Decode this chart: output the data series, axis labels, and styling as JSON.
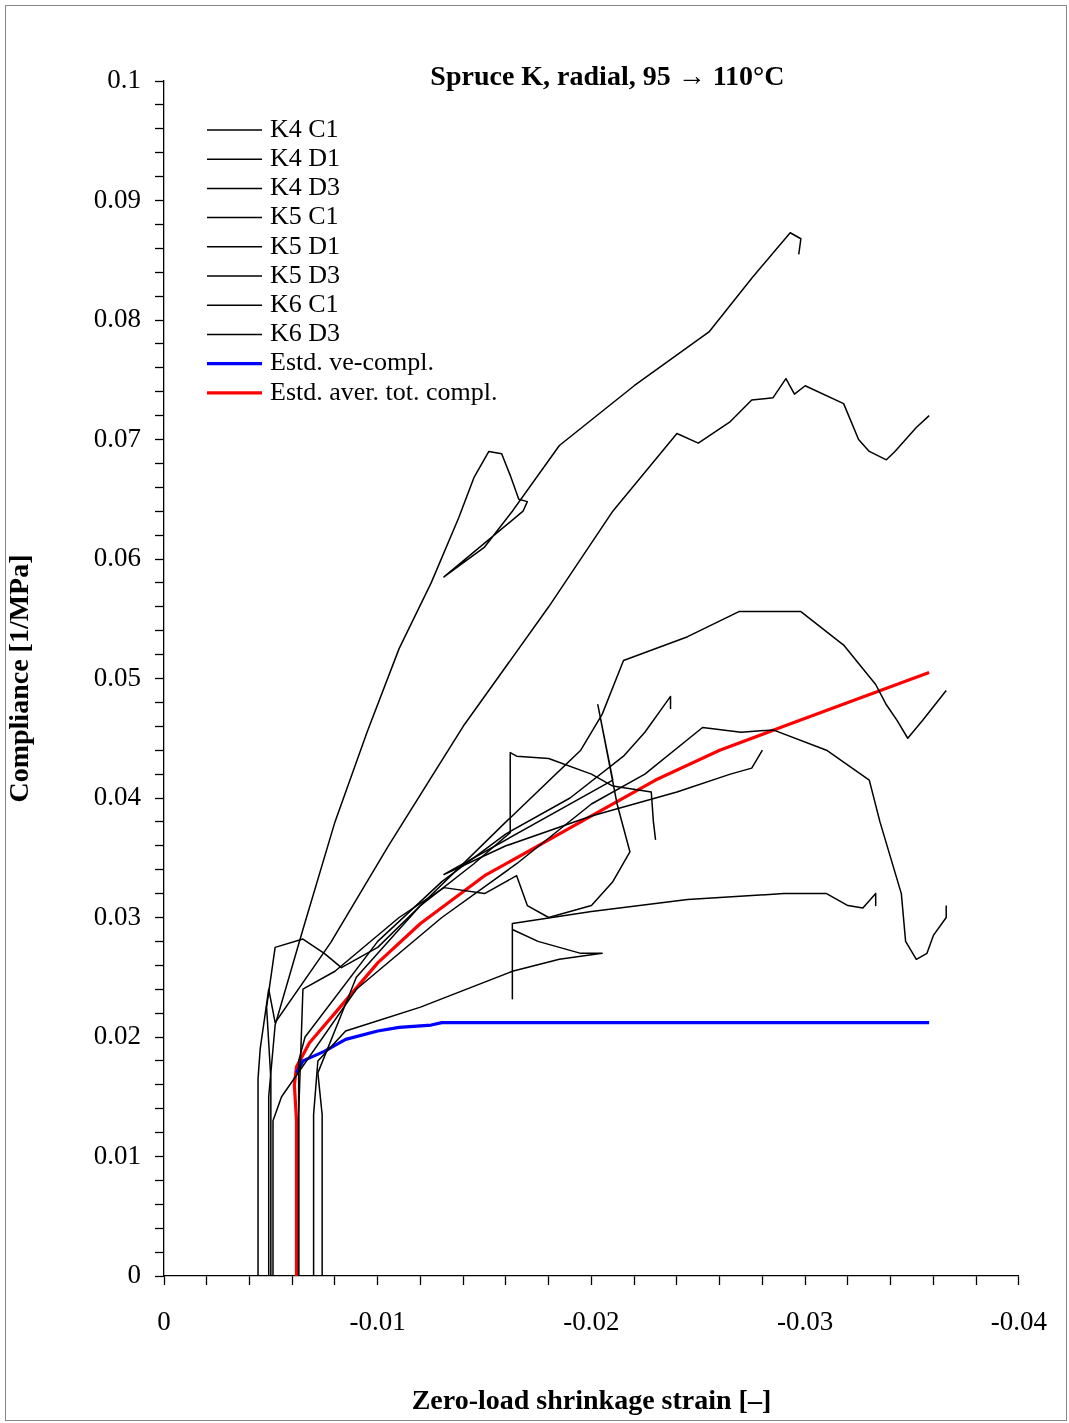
{
  "chart_data": {
    "type": "line",
    "title": "Spruce K, radial, 95 → 110°C",
    "xlabel": "Zero-load shrinkage strain [–]",
    "ylabel": "Compliance [1/MPa]",
    "legend": "top left",
    "marker": "none",
    "xlim": [
      0,
      -0.04
    ],
    "ylim": [
      0,
      0.1
    ],
    "xticks": [
      0,
      {
        "value": -0.002,
        "label": null
      },
      {
        "value": -0.004,
        "label": null
      },
      {
        "value": -0.006,
        "label": null
      },
      {
        "value": -0.008,
        "label": null
      },
      -0.01,
      {
        "value": -0.012,
        "label": null
      },
      {
        "value": -0.014,
        "label": null
      },
      {
        "value": -0.016,
        "label": null
      },
      {
        "value": -0.018,
        "label": null
      },
      -0.02,
      {
        "value": -0.022,
        "label": null
      },
      {
        "value": -0.024,
        "label": null
      },
      {
        "value": -0.026,
        "label": null
      },
      {
        "value": -0.028,
        "label": null
      },
      -0.03,
      {
        "value": -0.032,
        "label": null
      },
      {
        "value": -0.034,
        "label": null
      },
      {
        "value": -0.036,
        "label": null
      },
      {
        "value": -0.038,
        "label": null
      },
      -0.04
    ],
    "yticks": [
      0,
      {
        "value": 0.002,
        "label": null
      },
      {
        "value": 0.004,
        "label": null
      },
      {
        "value": 0.006,
        "label": null
      },
      {
        "value": 0.008,
        "label": null
      },
      0.01,
      {
        "value": 0.012,
        "label": null
      },
      {
        "value": 0.014,
        "label": null
      },
      {
        "value": 0.016,
        "label": null
      },
      {
        "value": 0.018,
        "label": null
      },
      0.02,
      {
        "value": 0.022,
        "label": null
      },
      {
        "value": 0.024,
        "label": null
      },
      {
        "value": 0.026,
        "label": null
      },
      {
        "value": 0.028,
        "label": null
      },
      0.03,
      {
        "value": 0.032,
        "label": null
      },
      {
        "value": 0.034,
        "label": null
      },
      {
        "value": 0.036,
        "label": null
      },
      {
        "value": 0.038,
        "label": null
      },
      0.04,
      {
        "value": 0.042,
        "label": null
      },
      {
        "value": 0.044,
        "label": null
      },
      {
        "value": 0.046,
        "label": null
      },
      {
        "value": 0.048,
        "label": null
      },
      0.05,
      {
        "value": 0.052,
        "label": null
      },
      {
        "value": 0.054,
        "label": null
      },
      {
        "value": 0.056,
        "label": null
      },
      {
        "value": 0.058,
        "label": null
      },
      0.06,
      {
        "value": 0.062,
        "label": null
      },
      {
        "value": 0.064,
        "label": null
      },
      {
        "value": 0.066,
        "label": null
      },
      {
        "value": 0.068,
        "label": null
      },
      0.07,
      {
        "value": 0.072,
        "label": null
      },
      {
        "value": 0.074,
        "label": null
      },
      {
        "value": 0.076,
        "label": null
      },
      {
        "value": 0.078,
        "label": null
      },
      0.08,
      {
        "value": 0.082,
        "label": null
      },
      {
        "value": 0.084,
        "label": null
      },
      {
        "value": 0.086,
        "label": null
      },
      {
        "value": 0.088,
        "label": null
      },
      0.09,
      {
        "value": 0.092,
        "label": null
      },
      {
        "value": 0.094,
        "label": null
      },
      {
        "value": 0.096,
        "label": null
      },
      {
        "value": 0.098,
        "label": null
      },
      0.1
    ],
    "series": [
      {
        "name": "K4 C1",
        "color": "#000000",
        "x": [
          -0.0049,
          -0.0049,
          -0.0052,
          -0.0065,
          -0.008,
          -0.0095,
          -0.011,
          -0.0125,
          -0.0138,
          -0.0145,
          -0.0152,
          -0.0158,
          -0.0162,
          -0.0166,
          -0.017,
          -0.0168,
          -0.0131,
          -0.015,
          -0.0163,
          -0.0185,
          -0.022,
          -0.0255,
          -0.0275,
          -0.0293,
          -0.0298,
          -0.0297
        ],
        "values": [
          0,
          0.015,
          0.021,
          0.029,
          0.038,
          0.0455,
          0.0525,
          0.058,
          0.0635,
          0.0668,
          0.069,
          0.0688,
          0.067,
          0.065,
          0.0648,
          0.064,
          0.0585,
          0.061,
          0.064,
          0.0695,
          0.0745,
          0.079,
          0.0835,
          0.0873,
          0.0868,
          0.0855
        ]
      },
      {
        "name": "K4 D1",
        "color": "#000000",
        "x": [
          -0.0044,
          -0.0044,
          -0.0045,
          -0.0049,
          -0.0052,
          -0.0078,
          -0.0105,
          -0.014,
          -0.018,
          -0.021,
          -0.024,
          -0.025,
          -0.0265,
          -0.0275,
          -0.0285,
          -0.0291,
          -0.0295,
          -0.03,
          -0.0318,
          -0.0325,
          -0.033,
          -0.0338,
          -0.0342,
          -0.0352,
          -0.0358
        ],
        "values": [
          0,
          0.0165,
          0.019,
          0.024,
          0.0212,
          0.0279,
          0.036,
          0.046,
          0.056,
          0.064,
          0.0705,
          0.0697,
          0.0715,
          0.0733,
          0.0735,
          0.0751,
          0.0738,
          0.0745,
          0.073,
          0.07,
          0.069,
          0.0683,
          0.069,
          0.071,
          0.072
        ]
      },
      {
        "name": "K4 D3",
        "color": "#000000",
        "x": [
          -0.005,
          -0.005,
          -0.0048,
          -0.0052,
          -0.0065,
          -0.0075,
          -0.0083,
          -0.01,
          -0.012,
          -0.016,
          -0.0195,
          -0.0205,
          -0.0215,
          -0.0245,
          -0.0269,
          -0.0298,
          -0.0318,
          -0.0333,
          -0.0338,
          -0.0343,
          -0.0348,
          -0.0355,
          -0.0366
        ],
        "values": [
          0,
          0.0165,
          0.0225,
          0.0275,
          0.0282,
          0.027,
          0.0258,
          0.0275,
          0.031,
          0.038,
          0.044,
          0.047,
          0.0515,
          0.0535,
          0.0556,
          0.0556,
          0.0528,
          0.0495,
          0.0478,
          0.0465,
          0.045,
          0.0465,
          0.049
        ]
      },
      {
        "name": "K5 C1",
        "color": "#000000",
        "x": [
          -0.0051,
          -0.0051,
          -0.0055,
          -0.009,
          -0.013,
          -0.0165,
          -0.02,
          -0.0225,
          -0.0252,
          -0.027,
          -0.0285,
          -0.031,
          -0.033,
          -0.0335,
          -0.0345,
          -0.0347,
          -0.0352,
          -0.0357,
          -0.036,
          -0.0366,
          -0.0366
        ],
        "values": [
          0,
          0.013,
          0.015,
          0.024,
          0.03,
          0.0345,
          0.0395,
          0.042,
          0.0459,
          0.0455,
          0.0457,
          0.044,
          0.0415,
          0.038,
          0.032,
          0.028,
          0.0265,
          0.027,
          0.0285,
          0.03,
          0.031
        ]
      },
      {
        "name": "K5 D1",
        "color": "#000000",
        "x": [
          -0.007,
          -0.007,
          -0.0072,
          -0.0085,
          -0.012,
          -0.0163,
          -0.0185,
          -0.0205,
          -0.0195,
          -0.0175,
          -0.0163,
          -0.0163,
          -0.0163,
          -0.02,
          -0.0245,
          -0.029,
          -0.031,
          -0.032,
          -0.0327,
          -0.0333,
          -0.0333
        ],
        "values": [
          0,
          0.0135,
          0.018,
          0.0205,
          0.0225,
          0.0255,
          0.0265,
          0.027,
          0.027,
          0.028,
          0.029,
          0.0232,
          0.0295,
          0.0305,
          0.0315,
          0.032,
          0.032,
          0.031,
          0.0308,
          0.032,
          0.031
        ]
      },
      {
        "name": "K5 D3",
        "color": "#000000",
        "x": [
          -0.0063,
          -0.0063,
          -0.0066,
          -0.01,
          -0.013,
          -0.016,
          -0.019,
          -0.0215,
          -0.0225,
          -0.0233,
          -0.0237,
          -0.0237
        ],
        "values": [
          0,
          0.018,
          0.02,
          0.028,
          0.033,
          0.037,
          0.04,
          0.0435,
          0.0455,
          0.0475,
          0.0485,
          0.0475
        ]
      },
      {
        "name": "K6 C1",
        "color": "#000000",
        "x": [
          -0.0074,
          -0.0074,
          -0.0072,
          -0.009,
          -0.012,
          -0.0145,
          -0.0162,
          -0.0162,
          -0.0165,
          -0.018,
          -0.02,
          -0.021,
          -0.0228,
          -0.0229,
          -0.023
        ],
        "values": [
          0,
          0.0135,
          0.017,
          0.025,
          0.031,
          0.0345,
          0.0371,
          0.0438,
          0.0435,
          0.0433,
          0.042,
          0.041,
          0.0405,
          0.038,
          0.0365
        ]
      },
      {
        "name": "K6 D3",
        "color": "#000000",
        "x": [
          -0.0063,
          -0.0063,
          -0.0065,
          -0.008,
          -0.011,
          -0.0131,
          -0.015,
          -0.0165,
          -0.017,
          -0.018,
          -0.02,
          -0.021,
          -0.0218,
          -0.0212,
          -0.0203,
          -0.021,
          -0.0131,
          -0.016,
          -0.02,
          -0.024,
          -0.0265,
          -0.0275,
          -0.028
        ],
        "values": [
          0,
          0.0135,
          0.024,
          0.0255,
          0.03,
          0.0325,
          0.032,
          0.0335,
          0.031,
          0.03,
          0.031,
          0.033,
          0.0355,
          0.0395,
          0.0478,
          0.0415,
          0.0336,
          0.036,
          0.0385,
          0.0405,
          0.042,
          0.0425,
          0.044
        ]
      },
      {
        "name": "Estd. ve-compl.",
        "color": "#0000ff",
        "x": [
          -0.0062,
          -0.0065,
          -0.0075,
          -0.0085,
          -0.01,
          -0.011,
          -0.0125,
          -0.013,
          -0.02,
          -0.0358
        ],
        "values": [
          0.017,
          0.018,
          0.0188,
          0.0198,
          0.0205,
          0.0208,
          0.021,
          0.0212,
          0.0212,
          0.0212
        ]
      },
      {
        "name": "Estd. aver. tot. compl.",
        "color": "#ff0000",
        "x": [
          -0.0062,
          -0.0062,
          -0.0061,
          -0.0062,
          -0.0068,
          -0.008,
          -0.01,
          -0.012,
          -0.015,
          -0.017,
          -0.02,
          -0.023,
          -0.026,
          -0.029,
          -0.032,
          -0.0358
        ],
        "values": [
          0,
          0.013,
          0.016,
          0.0175,
          0.0195,
          0.022,
          0.0262,
          0.0295,
          0.0335,
          0.0355,
          0.0385,
          0.0415,
          0.044,
          0.046,
          0.048,
          0.0505
        ]
      }
    ]
  }
}
